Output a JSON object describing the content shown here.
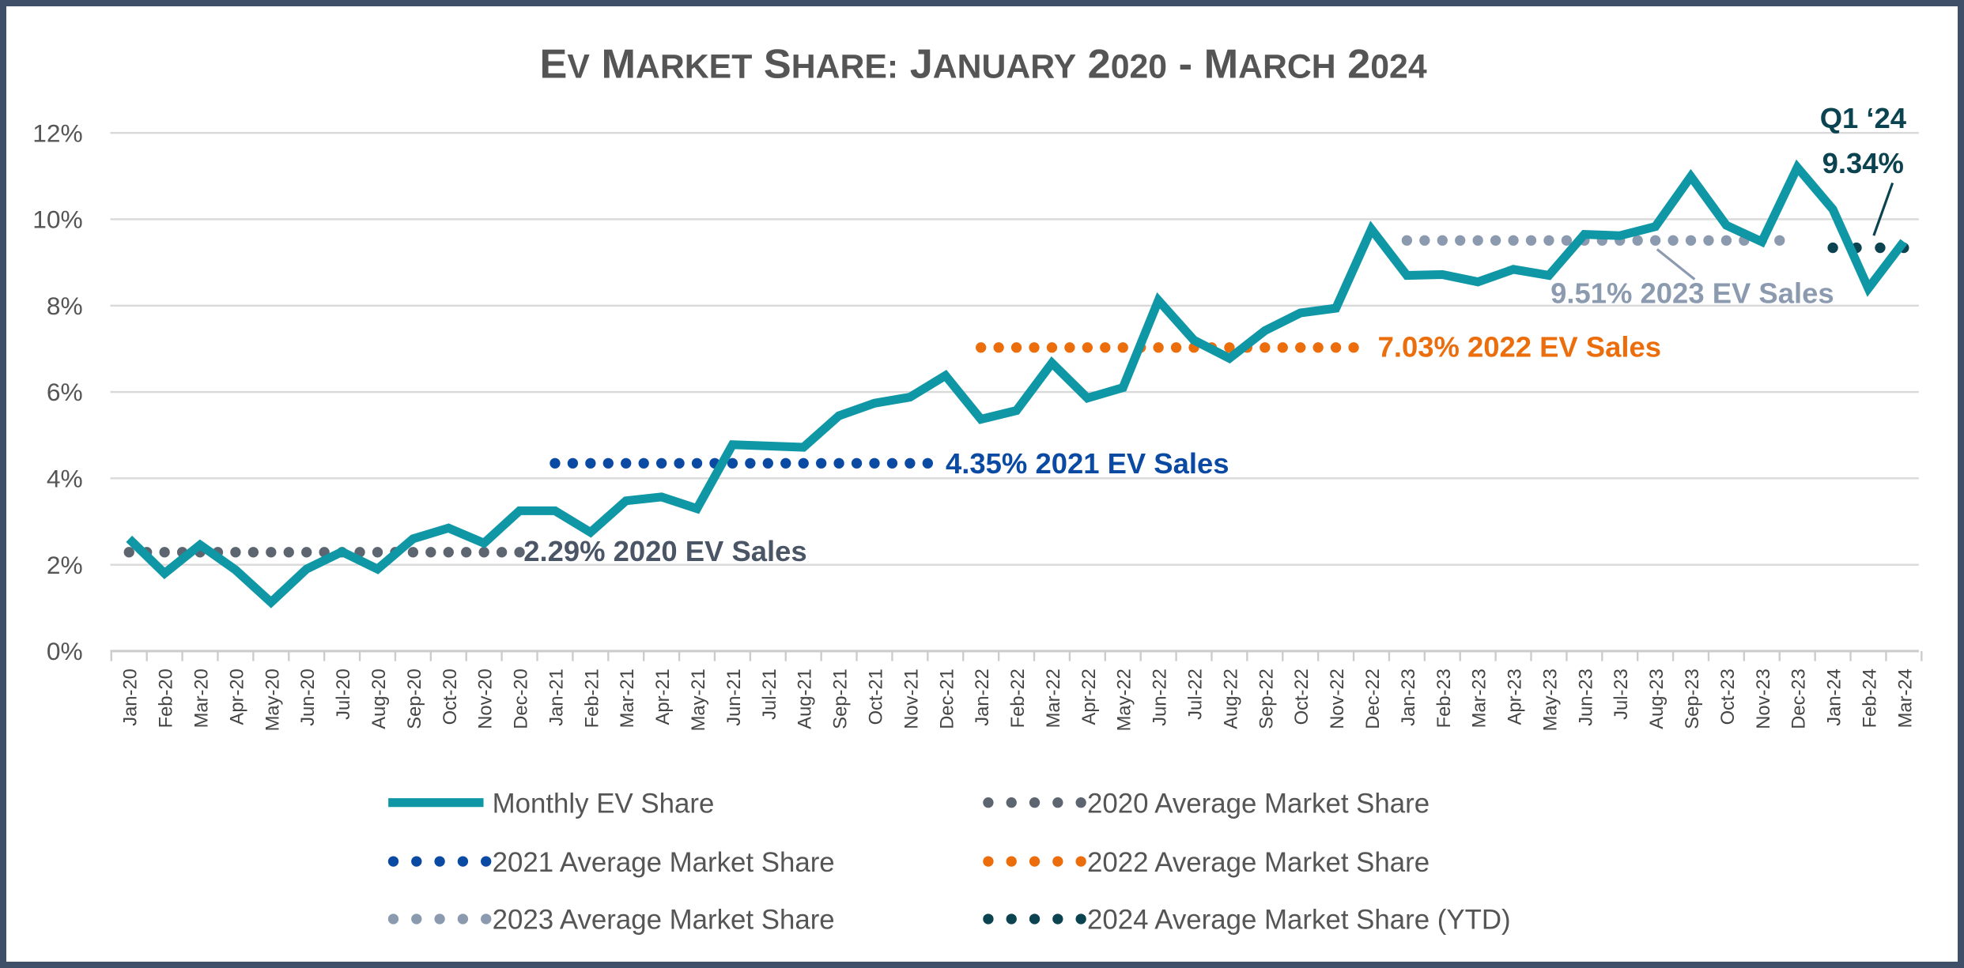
{
  "chart_data": {
    "type": "line",
    "title": "EV Market Share: January 2020 - March 2024",
    "xlabel": "",
    "ylabel": "",
    "ylim": [
      0,
      12
    ],
    "yticks": [
      "0%",
      "2%",
      "4%",
      "6%",
      "8%",
      "10%",
      "12%"
    ],
    "grid": true,
    "legend_position": "bottom",
    "categories": [
      "Jan-20",
      "Feb-20",
      "Mar-20",
      "Apr-20",
      "May-20",
      "Jun-20",
      "Jul-20",
      "Aug-20",
      "Sep-20",
      "Oct-20",
      "Nov-20",
      "Dec-20",
      "Jan-21",
      "Feb-21",
      "Mar-21",
      "Apr-21",
      "May-21",
      "Jun-21",
      "Jul-21",
      "Aug-21",
      "Sep-21",
      "Oct-21",
      "Nov-21",
      "Dec-21",
      "Jan-22",
      "Feb-22",
      "Mar-22",
      "Apr-22",
      "May-22",
      "Jun-22",
      "Jul-22",
      "Aug-22",
      "Sep-22",
      "Oct-22",
      "Nov-22",
      "Dec-22",
      "Jan-23",
      "Feb-23",
      "Mar-23",
      "Apr-23",
      "May-23",
      "Jun-23",
      "Jul-23",
      "Aug-23",
      "Sep-23",
      "Oct-23",
      "Nov-23",
      "Dec-23",
      "Jan-24",
      "Feb-24",
      "Mar-24"
    ],
    "series": [
      {
        "name": "Monthly EV Share",
        "color": "#0f97a6",
        "values": [
          2.6,
          1.8,
          2.46,
          1.88,
          1.13,
          1.9,
          2.3,
          1.9,
          2.6,
          2.85,
          2.5,
          3.25,
          3.25,
          2.75,
          3.48,
          3.57,
          3.3,
          4.78,
          4.75,
          4.72,
          5.45,
          5.74,
          5.88,
          6.38,
          5.37,
          5.57,
          6.67,
          5.86,
          6.1,
          8.12,
          7.2,
          6.78,
          7.42,
          7.83,
          7.94,
          9.77,
          8.7,
          8.72,
          8.55,
          8.84,
          8.7,
          9.65,
          9.62,
          9.83,
          10.99,
          9.86,
          9.48,
          11.2,
          10.23,
          8.4,
          9.48
        ]
      }
    ],
    "averages": [
      {
        "name": "2020 Average Market Share",
        "value": 2.29,
        "from": 0,
        "to": 11,
        "color": "#5c6570",
        "label": "2.29% 2020 EV Sales"
      },
      {
        "name": "2021 Average Market Share",
        "value": 4.35,
        "from": 12,
        "to": 22.5,
        "color": "#0b4aa2",
        "label": "4.35% 2021 EV Sales"
      },
      {
        "name": "2022 Average Market Share",
        "value": 7.03,
        "from": 24,
        "to": 34.5,
        "color": "#eb6d0c",
        "label": "7.03% 2022 EV Sales"
      },
      {
        "name": "2023 Average Market Share",
        "value": 9.51,
        "from": 36,
        "to": 46.5,
        "color": "#8c9ab0",
        "label": "9.51% 2023 EV Sales"
      },
      {
        "name": "2024 Average Market Share (YTD)",
        "value": 9.34,
        "from": 48,
        "to": 50,
        "color": "#0b4350",
        "label": "9.34%",
        "label_top": "Q1 ‘24"
      }
    ]
  }
}
